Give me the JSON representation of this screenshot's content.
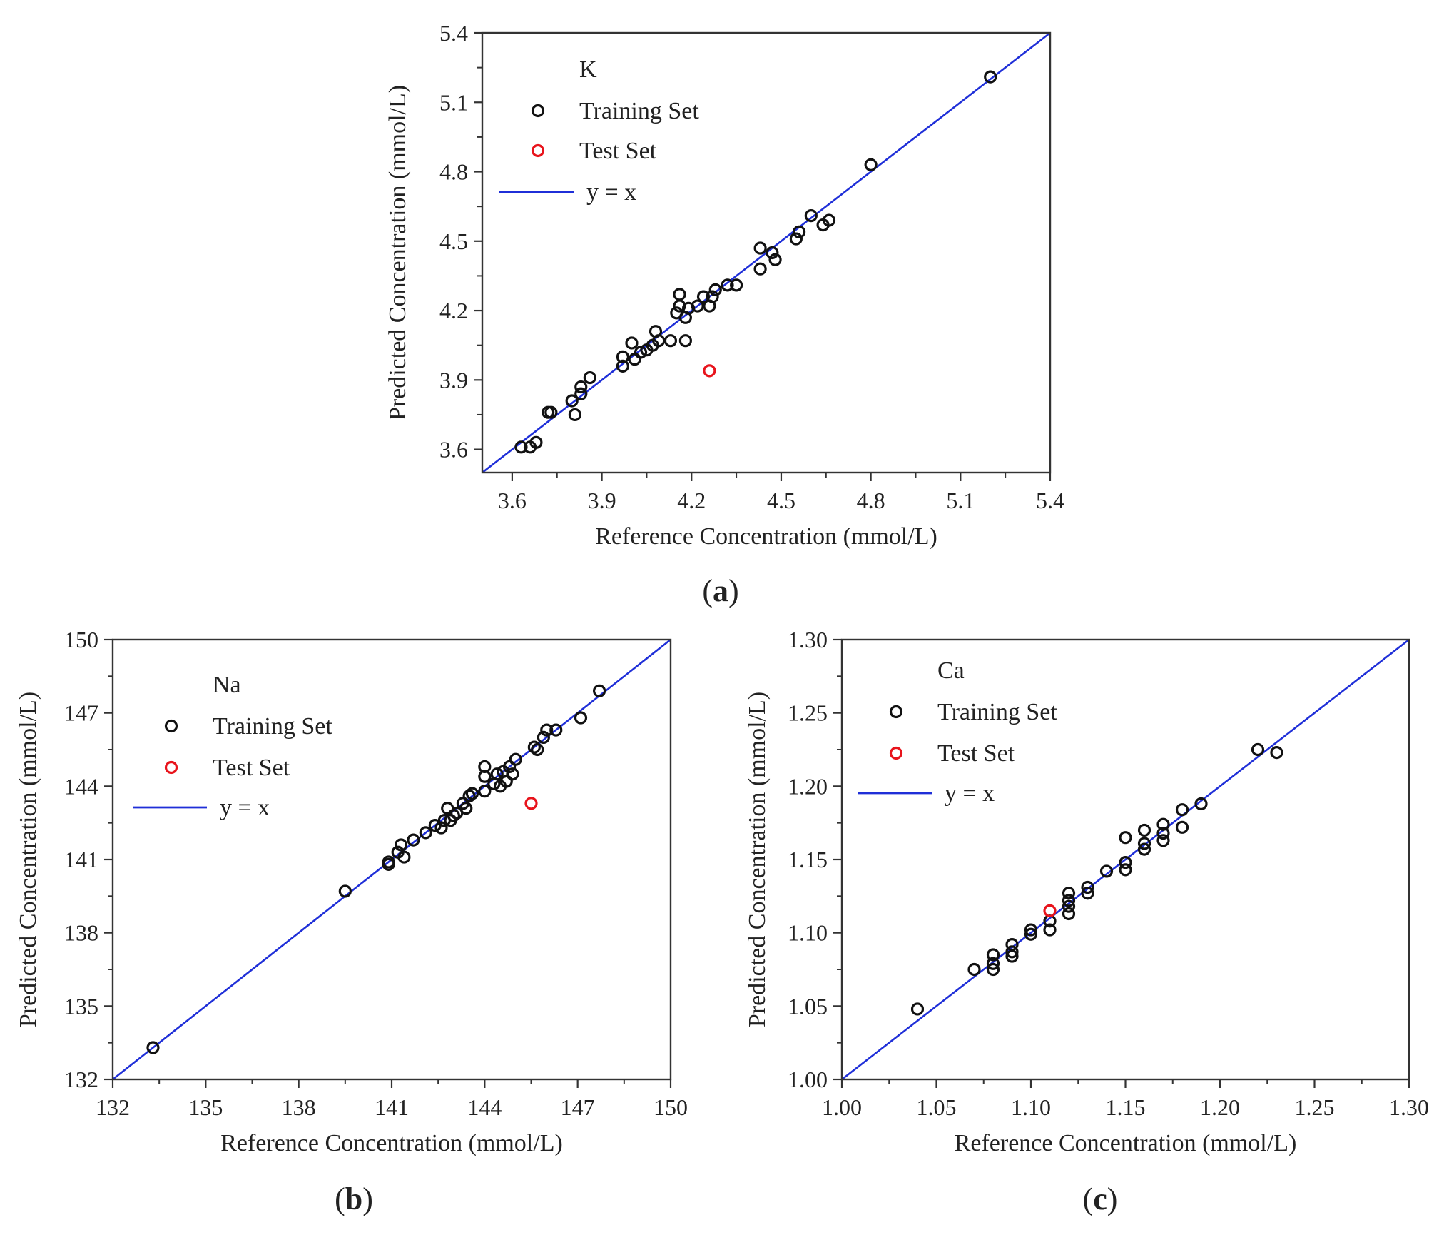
{
  "figure": {
    "panels": [
      "(a)",
      "(b)",
      "(c)"
    ]
  },
  "chart_data": [
    {
      "id": "a",
      "type": "scatter",
      "panel_label": "(a)",
      "element": "K",
      "title": "K",
      "xlabel": "Reference Concentration (mmol/L)",
      "ylabel": "Predicted Concentration (mmol/L)",
      "xlim": [
        3.5,
        5.4
      ],
      "ylim": [
        3.5,
        5.4
      ],
      "xticks": [
        3.6,
        3.9,
        4.2,
        4.5,
        4.8,
        5.1,
        5.4
      ],
      "yticks": [
        3.6,
        3.9,
        4.2,
        4.5,
        4.8,
        5.1,
        5.4
      ],
      "tick_decimals": 1,
      "grid": false,
      "legend_position": "top-left",
      "legend": {
        "training": "Training Set",
        "test": "Test Set",
        "line": "y = x"
      },
      "colors": {
        "training": "#111111",
        "test": "#e8141c",
        "line": "#1f2fd8",
        "axis": "#333333"
      },
      "series": [
        {
          "name": "Training Set",
          "points": [
            [
              3.63,
              3.61
            ],
            [
              3.66,
              3.61
            ],
            [
              3.68,
              3.63
            ],
            [
              3.72,
              3.76
            ],
            [
              3.73,
              3.76
            ],
            [
              3.8,
              3.81
            ],
            [
              3.81,
              3.75
            ],
            [
              3.83,
              3.84
            ],
            [
              3.83,
              3.87
            ],
            [
              3.86,
              3.91
            ],
            [
              3.97,
              3.96
            ],
            [
              3.97,
              4.0
            ],
            [
              4.0,
              4.06
            ],
            [
              4.01,
              3.99
            ],
            [
              4.03,
              4.02
            ],
            [
              4.05,
              4.03
            ],
            [
              4.07,
              4.05
            ],
            [
              4.08,
              4.11
            ],
            [
              4.09,
              4.07
            ],
            [
              4.13,
              4.07
            ],
            [
              4.15,
              4.19
            ],
            [
              4.16,
              4.22
            ],
            [
              4.16,
              4.27
            ],
            [
              4.18,
              4.07
            ],
            [
              4.18,
              4.17
            ],
            [
              4.19,
              4.21
            ],
            [
              4.22,
              4.22
            ],
            [
              4.24,
              4.26
            ],
            [
              4.26,
              4.22
            ],
            [
              4.27,
              4.26
            ],
            [
              4.28,
              4.29
            ],
            [
              4.32,
              4.31
            ],
            [
              4.35,
              4.31
            ],
            [
              4.43,
              4.38
            ],
            [
              4.43,
              4.47
            ],
            [
              4.47,
              4.45
            ],
            [
              4.48,
              4.42
            ],
            [
              4.55,
              4.51
            ],
            [
              4.56,
              4.54
            ],
            [
              4.6,
              4.61
            ],
            [
              4.64,
              4.57
            ],
            [
              4.66,
              4.59
            ],
            [
              4.8,
              4.83
            ],
            [
              5.2,
              5.21
            ]
          ]
        },
        {
          "name": "Test Set",
          "points": [
            [
              4.26,
              3.94
            ]
          ]
        }
      ]
    },
    {
      "id": "b",
      "type": "scatter",
      "panel_label": "(b)",
      "element": "Na",
      "title": "Na",
      "xlabel": "Reference Concentration (mmol/L)",
      "ylabel": "Predicted Concentration (mmol/L)",
      "xlim": [
        132,
        150
      ],
      "ylim": [
        132,
        150
      ],
      "xticks": [
        132,
        135,
        138,
        141,
        144,
        147,
        150
      ],
      "yticks": [
        132,
        135,
        138,
        141,
        144,
        147,
        150
      ],
      "tick_decimals": 0,
      "grid": false,
      "legend_position": "top-left",
      "legend": {
        "training": "Training Set",
        "test": "Test Set",
        "line": "y = x"
      },
      "colors": {
        "training": "#111111",
        "test": "#e8141c",
        "line": "#1f2fd8",
        "axis": "#333333"
      },
      "series": [
        {
          "name": "Training Set",
          "points": [
            [
              133.3,
              133.3
            ],
            [
              139.5,
              139.7
            ],
            [
              140.9,
              140.8
            ],
            [
              140.9,
              140.9
            ],
            [
              141.2,
              141.3
            ],
            [
              141.3,
              141.6
            ],
            [
              141.4,
              141.1
            ],
            [
              141.7,
              141.8
            ],
            [
              142.1,
              142.1
            ],
            [
              142.4,
              142.4
            ],
            [
              142.6,
              142.3
            ],
            [
              142.7,
              142.6
            ],
            [
              142.8,
              143.1
            ],
            [
              142.9,
              142.6
            ],
            [
              143.0,
              142.8
            ],
            [
              143.1,
              142.9
            ],
            [
              143.3,
              143.3
            ],
            [
              143.4,
              143.1
            ],
            [
              143.5,
              143.6
            ],
            [
              143.6,
              143.7
            ],
            [
              144.0,
              143.8
            ],
            [
              144.0,
              144.4
            ],
            [
              144.0,
              144.8
            ],
            [
              144.3,
              144.1
            ],
            [
              144.4,
              144.5
            ],
            [
              144.5,
              144.0
            ],
            [
              144.6,
              144.6
            ],
            [
              144.7,
              144.2
            ],
            [
              144.8,
              144.8
            ],
            [
              144.9,
              144.5
            ],
            [
              145.0,
              145.1
            ],
            [
              145.6,
              145.6
            ],
            [
              145.7,
              145.5
            ],
            [
              145.9,
              146.0
            ],
            [
              146.0,
              146.3
            ],
            [
              146.3,
              146.3
            ],
            [
              147.1,
              146.8
            ],
            [
              147.7,
              147.9
            ]
          ]
        },
        {
          "name": "Test Set",
          "points": [
            [
              145.5,
              143.3
            ]
          ]
        }
      ]
    },
    {
      "id": "c",
      "type": "scatter",
      "panel_label": "(c)",
      "element": "Ca",
      "title": "Ca",
      "xlabel": "Reference Concentration (mmol/L)",
      "ylabel": "Predicted Concentration (mmol/L)",
      "xlim": [
        1.0,
        1.3
      ],
      "ylim": [
        1.0,
        1.3
      ],
      "xticks": [
        1.0,
        1.05,
        1.1,
        1.15,
        1.2,
        1.25,
        1.3
      ],
      "yticks": [
        1.0,
        1.05,
        1.1,
        1.15,
        1.2,
        1.25,
        1.3
      ],
      "tick_decimals": 2,
      "grid": false,
      "legend_position": "top-left",
      "legend": {
        "training": "Training Set",
        "test": "Test Set",
        "line": "y = x"
      },
      "colors": {
        "training": "#111111",
        "test": "#e8141c",
        "line": "#1f2fd8",
        "axis": "#333333"
      },
      "series": [
        {
          "name": "Training Set",
          "points": [
            [
              1.04,
              1.048
            ],
            [
              1.07,
              1.075
            ],
            [
              1.08,
              1.075
            ],
            [
              1.08,
              1.079
            ],
            [
              1.08,
              1.085
            ],
            [
              1.09,
              1.084
            ],
            [
              1.09,
              1.087
            ],
            [
              1.09,
              1.092
            ],
            [
              1.1,
              1.099
            ],
            [
              1.1,
              1.102
            ],
            [
              1.11,
              1.102
            ],
            [
              1.11,
              1.108
            ],
            [
              1.12,
              1.113
            ],
            [
              1.12,
              1.118
            ],
            [
              1.12,
              1.122
            ],
            [
              1.12,
              1.127
            ],
            [
              1.13,
              1.127
            ],
            [
              1.13,
              1.131
            ],
            [
              1.14,
              1.142
            ],
            [
              1.15,
              1.143
            ],
            [
              1.15,
              1.148
            ],
            [
              1.15,
              1.165
            ],
            [
              1.16,
              1.157
            ],
            [
              1.16,
              1.161
            ],
            [
              1.16,
              1.17
            ],
            [
              1.17,
              1.163
            ],
            [
              1.17,
              1.168
            ],
            [
              1.17,
              1.174
            ],
            [
              1.18,
              1.172
            ],
            [
              1.18,
              1.184
            ],
            [
              1.19,
              1.188
            ],
            [
              1.22,
              1.225
            ],
            [
              1.23,
              1.223
            ]
          ]
        },
        {
          "name": "Test Set",
          "points": [
            [
              1.11,
              1.115
            ]
          ]
        }
      ]
    }
  ]
}
